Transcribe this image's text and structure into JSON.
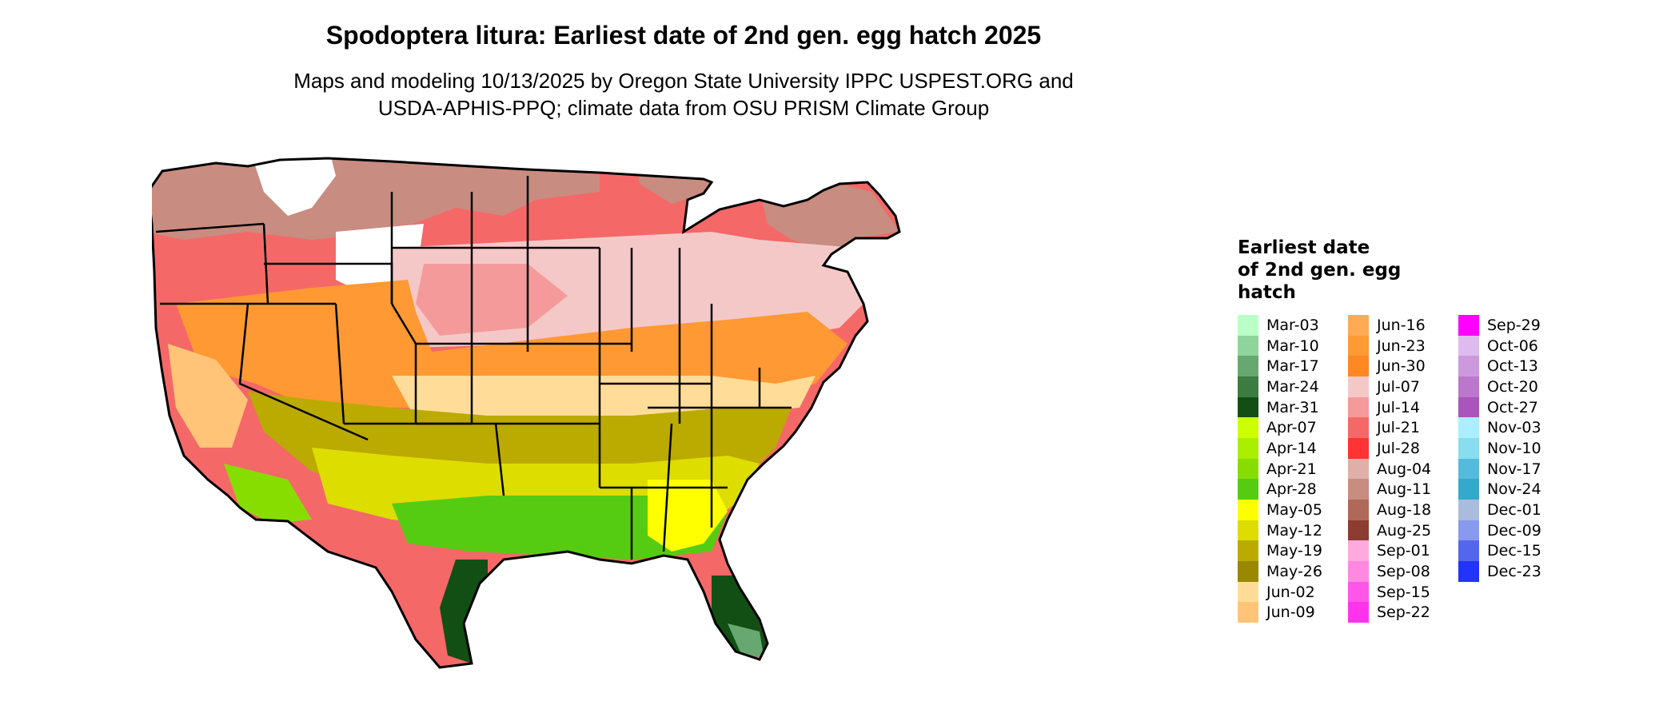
{
  "header": {
    "title": "Spodoptera litura: Earliest date of 2nd gen. egg hatch 2025",
    "subtitle_line1": "Maps and modeling 10/13/2025 by Oregon State University IPPC USPEST.ORG and",
    "subtitle_line2": "USDA-APHIS-PPQ; climate data from OSU PRISM Climate Group"
  },
  "legend": {
    "title_line1": "Earliest date",
    "title_line2": "of 2nd gen. egg",
    "title_line3": "hatch",
    "columns": [
      [
        {
          "label": "Mar-03",
          "color": "#b8ffc8"
        },
        {
          "label": "Mar-10",
          "color": "#8fd49a"
        },
        {
          "label": "Mar-17",
          "color": "#66a870"
        },
        {
          "label": "Mar-24",
          "color": "#3c7c40"
        },
        {
          "label": "Mar-31",
          "color": "#124f14"
        },
        {
          "label": "Apr-07",
          "color": "#ccff00"
        },
        {
          "label": "Apr-14",
          "color": "#aaee00"
        },
        {
          "label": "Apr-21",
          "color": "#88dd00"
        },
        {
          "label": "Apr-28",
          "color": "#55cc11"
        },
        {
          "label": "May-05",
          "color": "#ffff00"
        },
        {
          "label": "May-12",
          "color": "#dddd00"
        },
        {
          "label": "May-19",
          "color": "#bbaa00"
        },
        {
          "label": "May-26",
          "color": "#998800"
        },
        {
          "label": "Jun-02",
          "color": "#ffdd99"
        },
        {
          "label": "Jun-09",
          "color": "#ffc477"
        }
      ],
      [
        {
          "label": "Jun-16",
          "color": "#ffaa55"
        },
        {
          "label": "Jun-23",
          "color": "#ff9933"
        },
        {
          "label": "Jun-30",
          "color": "#ff8822"
        },
        {
          "label": "Jul-07",
          "color": "#f5c8c8"
        },
        {
          "label": "Jul-14",
          "color": "#f59a9a"
        },
        {
          "label": "Jul-21",
          "color": "#f56868"
        },
        {
          "label": "Jul-28",
          "color": "#ff3333"
        },
        {
          "label": "Aug-04",
          "color": "#e0b0a8"
        },
        {
          "label": "Aug-11",
          "color": "#c88c80"
        },
        {
          "label": "Aug-18",
          "color": "#b06858"
        },
        {
          "label": "Aug-25",
          "color": "#8c3c30"
        },
        {
          "label": "Sep-01",
          "color": "#ffaadd"
        },
        {
          "label": "Sep-08",
          "color": "#ff88e0"
        },
        {
          "label": "Sep-15",
          "color": "#ff55e8"
        },
        {
          "label": "Sep-22",
          "color": "#ff33ee"
        }
      ],
      [
        {
          "label": "Sep-29",
          "color": "#ff00ff"
        },
        {
          "label": "Oct-06",
          "color": "#ddbbee"
        },
        {
          "label": "Oct-13",
          "color": "#cc99dd"
        },
        {
          "label": "Oct-20",
          "color": "#bb77cc"
        },
        {
          "label": "Oct-27",
          "color": "#aa55bb"
        },
        {
          "label": "Nov-03",
          "color": "#aaeeff"
        },
        {
          "label": "Nov-10",
          "color": "#88ddee"
        },
        {
          "label": "Nov-17",
          "color": "#55bbdd"
        },
        {
          "label": "Nov-24",
          "color": "#33aacc"
        },
        {
          "label": "Dec-01",
          "color": "#aabbdd"
        },
        {
          "label": "Dec-09",
          "color": "#8899ee"
        },
        {
          "label": "Dec-15",
          "color": "#5566ee"
        },
        {
          "label": "Dec-23",
          "color": "#2233ff"
        }
      ]
    ]
  }
}
